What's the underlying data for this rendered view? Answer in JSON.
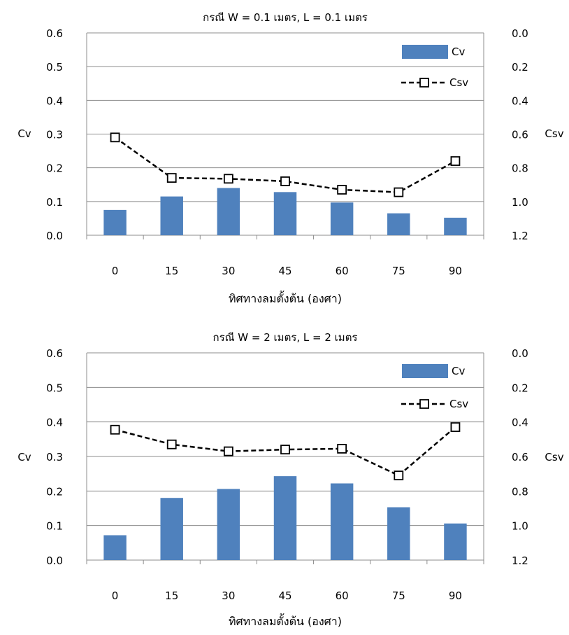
{
  "chart_data": [
    {
      "type": "bar+line",
      "title": "กรณี W = 0.1 เมตร, L = 0.1 เมตร",
      "xlabel": "ทิศทางลมตั้งต้น (องศา)",
      "ylabel_left": "Cv",
      "ylabel_right": "Csv",
      "categories": [
        "0",
        "15",
        "30",
        "45",
        "60",
        "75",
        "90"
      ],
      "y_left": {
        "lim": [
          0,
          0.6
        ],
        "ticks": [
          "0.0",
          "0.1",
          "0.2",
          "0.3",
          "0.4",
          "0.5",
          "0.6"
        ]
      },
      "y_right": {
        "lim": [
          0,
          1.2
        ],
        "inverted": true,
        "ticks": [
          "0.0",
          "0.2",
          "0.4",
          "0.6",
          "0.8",
          "1.0",
          "1.2"
        ]
      },
      "grid": true,
      "legend_position": "top-right",
      "series": [
        {
          "name": "Cv",
          "type": "bar",
          "axis": "left",
          "color": "#4f81bd",
          "values": [
            0.075,
            0.115,
            0.14,
            0.128,
            0.097,
            0.065,
            0.052
          ]
        },
        {
          "name": "Csv",
          "type": "line",
          "axis": "right",
          "color": "#000000",
          "marker": "square",
          "dashed": true,
          "values": [
            0.62,
            0.86,
            0.865,
            0.88,
            0.93,
            0.945,
            0.76
          ]
        }
      ]
    },
    {
      "type": "bar+line",
      "title": "กรณี W = 2 เมตร, L = 2 เมตร",
      "xlabel": "ทิศทางลมตั้งต้น (องศา)",
      "ylabel_left": "Cv",
      "ylabel_right": "Csv",
      "categories": [
        "0",
        "15",
        "30",
        "45",
        "60",
        "75",
        "90"
      ],
      "y_left": {
        "lim": [
          0,
          0.6
        ],
        "ticks": [
          "0.0",
          "0.1",
          "0.2",
          "0.3",
          "0.4",
          "0.5",
          "0.6"
        ]
      },
      "y_right": {
        "lim": [
          0,
          1.2
        ],
        "inverted": true,
        "ticks": [
          "0.0",
          "0.2",
          "0.4",
          "0.6",
          "0.8",
          "1.0",
          "1.2"
        ]
      },
      "grid": true,
      "legend_position": "top-right",
      "series": [
        {
          "name": "Cv",
          "type": "bar",
          "axis": "left",
          "color": "#4f81bd",
          "values": [
            0.072,
            0.18,
            0.206,
            0.243,
            0.222,
            0.153,
            0.106
          ]
        },
        {
          "name": "Csv",
          "type": "line",
          "axis": "right",
          "color": "#000000",
          "marker": "square",
          "dashed": true,
          "values": [
            0.445,
            0.53,
            0.57,
            0.56,
            0.555,
            0.71,
            0.43
          ]
        }
      ]
    }
  ]
}
